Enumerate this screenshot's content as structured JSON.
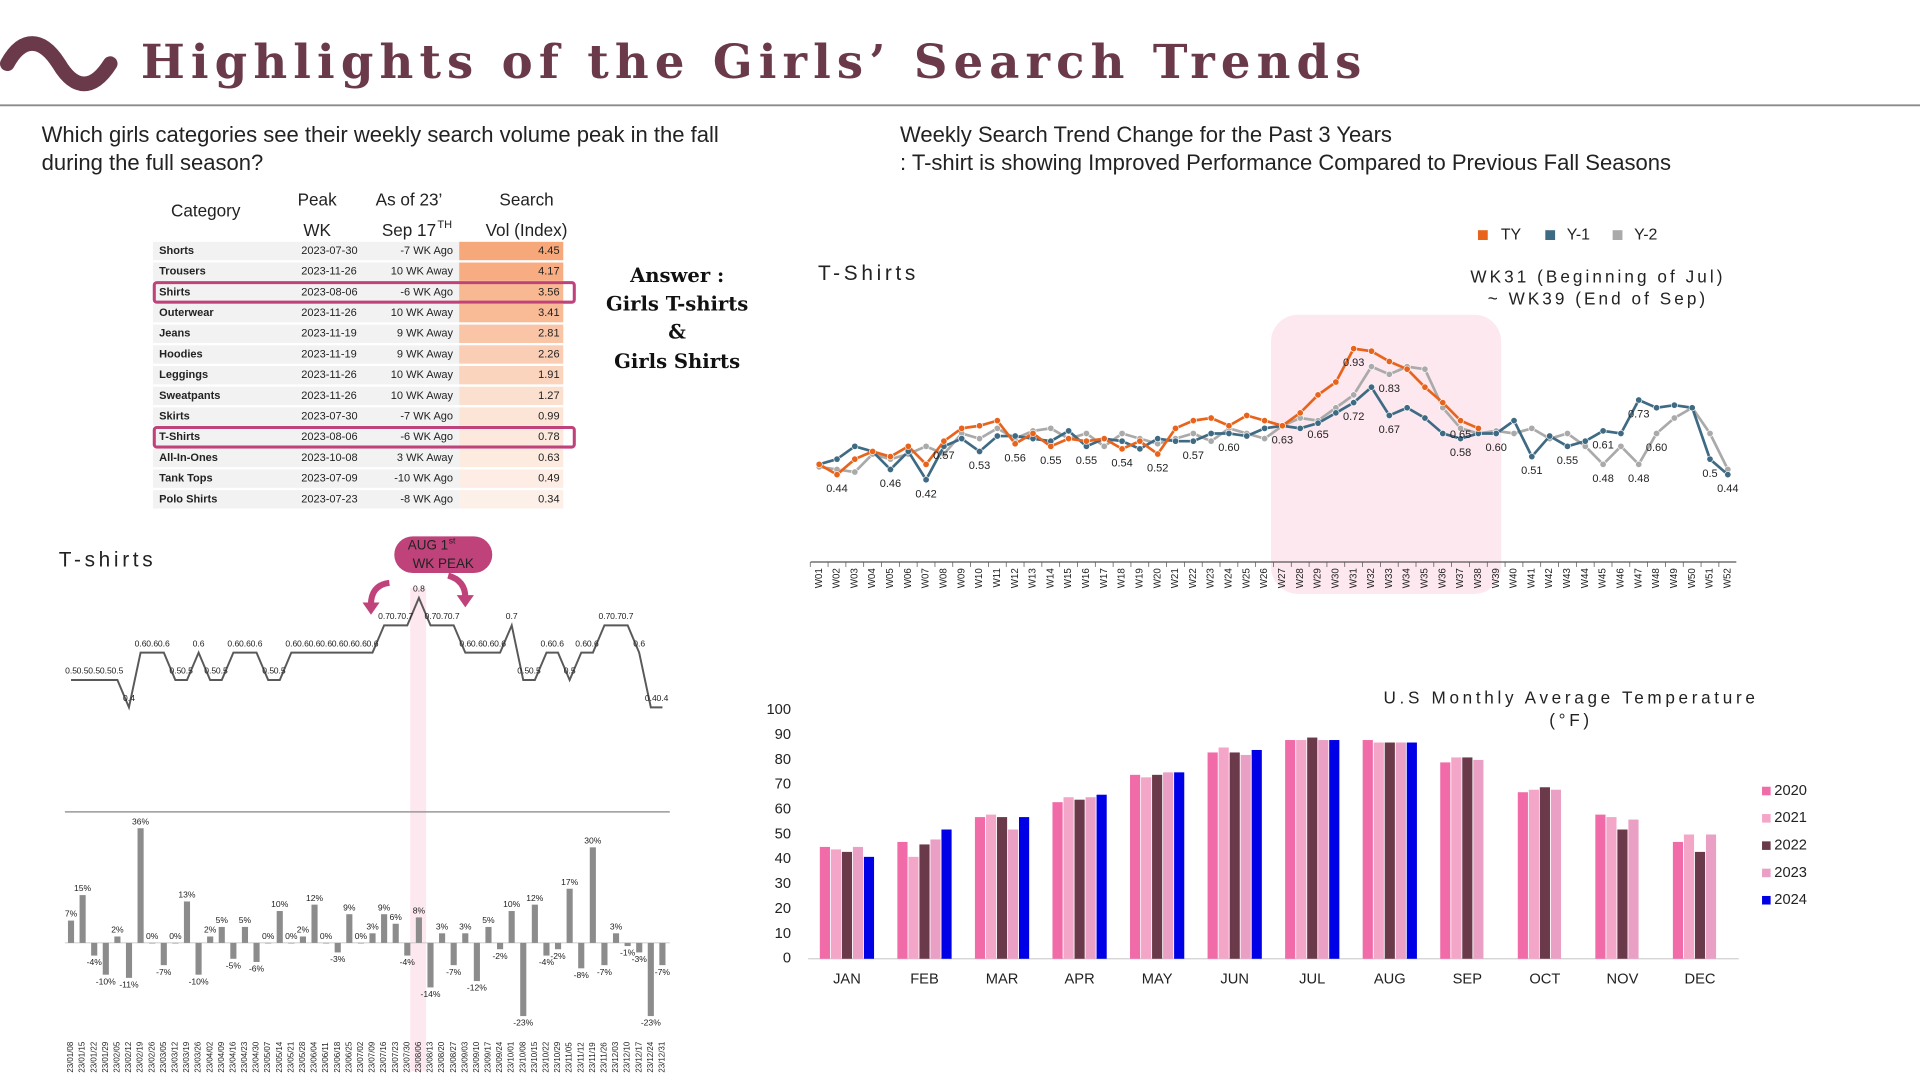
{
  "header": {
    "title": "Highlights of the Girls’ Search Trends"
  },
  "left_question": [
    "Which girls categories see their weekly search volume peak in the fall",
    "during the full season?"
  ],
  "table": {
    "headers": [
      [
        "Category"
      ],
      [
        "Peak",
        "WK"
      ],
      [
        "As of 23’",
        "Sep 17"
      ],
      [
        "Search",
        "Vol (Index)"
      ]
    ],
    "header_sup": "TH",
    "rows": [
      {
        "category": "Shorts",
        "peak_wk": "2023-07-30",
        "as_of": "-7 WK Ago",
        "vol": 4.45
      },
      {
        "category": "Trousers",
        "peak_wk": "2023-11-26",
        "as_of": "10 WK Away",
        "vol": 4.17
      },
      {
        "category": "Shirts",
        "peak_wk": "2023-08-06",
        "as_of": "-6 WK Ago",
        "vol": 3.56,
        "highlight": true
      },
      {
        "category": "Outerwear",
        "peak_wk": "2023-11-26",
        "as_of": "10 WK Away",
        "vol": 3.41
      },
      {
        "category": "Jeans",
        "peak_wk": "2023-11-19",
        "as_of": "9 WK Away",
        "vol": 2.81
      },
      {
        "category": "Hoodies",
        "peak_wk": "2023-11-19",
        "as_of": "9 WK Away",
        "vol": 2.26
      },
      {
        "category": "Leggings",
        "peak_wk": "2023-11-26",
        "as_of": "10 WK Away",
        "vol": 1.91
      },
      {
        "category": "Sweatpants",
        "peak_wk": "2023-11-26",
        "as_of": "10 WK Away",
        "vol": 1.27
      },
      {
        "category": "Skirts",
        "peak_wk": "2023-07-30",
        "as_of": "-7 WK Ago",
        "vol": 0.99
      },
      {
        "category": "T-Shirts",
        "peak_wk": "2023-08-06",
        "as_of": "-6 WK Ago",
        "vol": 0.78,
        "highlight": true
      },
      {
        "category": "All-In-Ones",
        "peak_wk": "2023-10-08",
        "as_of": "3 WK Away",
        "vol": 0.63
      },
      {
        "category": "Tank Tops",
        "peak_wk": "2023-07-09",
        "as_of": "-10 WK Ago",
        "vol": 0.49
      },
      {
        "category": "Polo Shirts",
        "peak_wk": "2023-07-23",
        "as_of": "-8 WK Ago",
        "vol": 0.34
      }
    ]
  },
  "answer": [
    "Answer :",
    "Girls T-shirts",
    "&",
    "Girls Shirts"
  ],
  "right_heading": [
    "Weekly Search Trend Change for the Past 3 Years",
    ": T-shirt is showing Improved Performance Compared to Previous Fall Seasons"
  ],
  "chart_data": [
    {
      "type": "line",
      "title": "T-Shirts",
      "annotation": [
        "WK31 (Beginning of Jul)",
        "~ WK39  (End of Sep)"
      ],
      "categories": [
        "W01",
        "W02",
        "W03",
        "W04",
        "W05",
        "W06",
        "W07",
        "W08",
        "W09",
        "W10",
        "W11",
        "W12",
        "W13",
        "W14",
        "W15",
        "W16",
        "W17",
        "W18",
        "W19",
        "W20",
        "W21",
        "W22",
        "W23",
        "W24",
        "W25",
        "W26",
        "W27",
        "W28",
        "W29",
        "W30",
        "W31",
        "W32",
        "W33",
        "W34",
        "W35",
        "W36",
        "W37",
        "W38",
        "W39",
        "W40",
        "W41",
        "W42",
        "W43",
        "W44",
        "W45",
        "W46",
        "W47",
        "W48",
        "W49",
        "W50",
        "W51",
        "W52"
      ],
      "ylim": [
        0.3,
        1.0
      ],
      "series": [
        {
          "name": "TY",
          "color": "#e8641c",
          "values": [
            0.48,
            0.44,
            0.5,
            0.53,
            0.51,
            0.55,
            0.48,
            0.57,
            0.62,
            0.63,
            0.65,
            0.56,
            0.6,
            0.55,
            0.58,
            0.57,
            0.58,
            0.54,
            0.57,
            0.52,
            0.62,
            0.65,
            0.66,
            0.63,
            0.67,
            0.65,
            0.63,
            0.68,
            0.75,
            0.8,
            0.93,
            0.92,
            0.88,
            0.85,
            0.78,
            0.72,
            0.65,
            0.62,
            null,
            null,
            null,
            null,
            null,
            null,
            null,
            null,
            null,
            null,
            null,
            null,
            null,
            null
          ],
          "value_labels": [
            null,
            "0.44",
            null,
            null,
            null,
            null,
            null,
            "0.57",
            null,
            null,
            null,
            "0.56",
            null,
            "0.55",
            null,
            null,
            null,
            "0.54",
            null,
            "0.52",
            null,
            null,
            null,
            null,
            null,
            null,
            null,
            null,
            null,
            null,
            "0.93",
            null,
            null,
            null,
            null,
            null,
            "0.65",
            null,
            null,
            null,
            null,
            null,
            null,
            null,
            null,
            null,
            null,
            null,
            null,
            null,
            null,
            null
          ]
        },
        {
          "name": "Y-1",
          "color": "#3e6a83",
          "values": [
            0.48,
            0.5,
            0.55,
            0.53,
            0.46,
            0.53,
            0.42,
            0.55,
            0.58,
            0.53,
            0.59,
            0.59,
            0.58,
            0.57,
            0.61,
            0.55,
            0.58,
            0.57,
            0.54,
            0.58,
            0.57,
            0.57,
            0.6,
            0.6,
            0.59,
            0.62,
            0.63,
            0.62,
            0.64,
            0.68,
            0.72,
            0.78,
            0.67,
            0.7,
            0.66,
            0.6,
            0.58,
            0.6,
            0.6,
            0.65,
            0.51,
            0.59,
            0.55,
            0.57,
            0.61,
            0.6,
            0.73,
            0.7,
            0.71,
            0.7,
            0.5,
            0.44
          ],
          "value_labels": [
            null,
            null,
            null,
            null,
            "0.46",
            null,
            "0.42",
            null,
            null,
            "0.53",
            null,
            null,
            null,
            null,
            null,
            "0.55",
            null,
            null,
            null,
            null,
            null,
            "0.57",
            null,
            "0.60",
            null,
            null,
            null,
            null,
            null,
            null,
            "0.72",
            null,
            "0.67",
            null,
            null,
            null,
            "0.58",
            null,
            "0.60",
            null,
            "0.51",
            null,
            "0.55",
            null,
            "0.61",
            null,
            "0.73",
            null,
            null,
            null,
            "0.5",
            "0.44"
          ]
        },
        {
          "name": "Y-2",
          "color": "#aaaaaa",
          "values": [
            0.47,
            0.46,
            0.45,
            0.52,
            0.5,
            0.52,
            0.55,
            0.52,
            0.6,
            0.58,
            0.62,
            0.58,
            0.61,
            0.62,
            0.58,
            0.6,
            0.55,
            0.6,
            0.58,
            0.56,
            0.58,
            0.6,
            0.57,
            0.62,
            0.6,
            0.58,
            0.63,
            0.66,
            0.65,
            0.7,
            0.75,
            0.86,
            0.83,
            0.86,
            0.85,
            0.7,
            0.62,
            0.6,
            0.61,
            0.6,
            0.62,
            0.58,
            0.6,
            0.55,
            0.48,
            0.55,
            0.48,
            0.6,
            0.66,
            0.7,
            0.6,
            0.46
          ],
          "value_labels": [
            null,
            null,
            null,
            null,
            null,
            null,
            null,
            null,
            null,
            null,
            null,
            null,
            null,
            null,
            null,
            null,
            null,
            null,
            null,
            null,
            null,
            null,
            null,
            null,
            null,
            null,
            "0.63",
            null,
            "0.65",
            null,
            null,
            null,
            "0.83",
            null,
            null,
            null,
            null,
            null,
            null,
            null,
            null,
            null,
            null,
            null,
            "0.48",
            null,
            "0.48",
            "0.60",
            null,
            null,
            null,
            null
          ]
        }
      ],
      "legend": "top"
    },
    {
      "type": "combo",
      "title": "T-shirts",
      "annotation": {
        "lines": [
          "AUG 1",
          "WK PEAK"
        ],
        "sup": "st"
      },
      "categories": [
        "23/01/08",
        "23/01/15",
        "23/01/22",
        "23/01/29",
        "23/02/05",
        "23/02/12",
        "23/02/19",
        "23/02/26",
        "23/03/05",
        "23/03/12",
        "23/03/19",
        "23/03/26",
        "23/04/02",
        "23/04/09",
        "23/04/16",
        "23/04/23",
        "23/04/30",
        "23/05/07",
        "23/05/14",
        "23/05/21",
        "23/05/28",
        "23/06/04",
        "23/06/11",
        "23/06/18",
        "23/06/25",
        "23/07/02",
        "23/07/09",
        "23/07/16",
        "23/07/23",
        "23/07/30",
        "23/08/06",
        "23/08/13",
        "23/08/20",
        "23/08/27",
        "23/09/03",
        "23/09/10",
        "23/09/17",
        "23/09/24",
        "23/10/01",
        "23/10/08",
        "23/10/15",
        "23/10/22",
        "23/10/29",
        "23/11/05",
        "23/11/12",
        "23/11/19",
        "23/11/26",
        "23/12/03",
        "23/12/10",
        "23/12/17",
        "23/12/24",
        "23/12/31"
      ],
      "line": {
        "color": "#595959",
        "ylim": [
          0.3,
          0.9
        ],
        "values": [
          0.5,
          0.5,
          0.5,
          0.5,
          0.5,
          0.4,
          0.6,
          0.6,
          0.6,
          0.5,
          0.5,
          0.6,
          0.5,
          0.5,
          0.6,
          0.6,
          0.6,
          0.5,
          0.5,
          0.6,
          0.6,
          0.6,
          0.6,
          0.6,
          0.6,
          0.6,
          0.6,
          0.7,
          0.7,
          0.7,
          0.8,
          0.7,
          0.7,
          0.7,
          0.6,
          0.6,
          0.6,
          0.6,
          0.7,
          0.5,
          0.5,
          0.6,
          0.6,
          0.5,
          0.6,
          0.6,
          0.7,
          0.7,
          0.7,
          0.6,
          0.4,
          0.4
        ]
      },
      "bars": {
        "color": "#8c8c8c",
        "ylim": [
          -25,
          40
        ],
        "values": [
          7,
          15,
          -4,
          -10,
          2,
          -11,
          36,
          0,
          -7,
          0,
          13,
          -10,
          2,
          5,
          -5,
          5,
          -6,
          0,
          10,
          0,
          2,
          12,
          0,
          -3,
          9,
          0,
          3,
          9,
          6,
          -4,
          8,
          -14,
          3,
          -7,
          3,
          -12,
          5,
          -2,
          10,
          -23,
          12,
          -4,
          -2,
          17,
          -8,
          30,
          -7,
          3,
          -1,
          -3,
          -23,
          -7
        ],
        "value_labels": [
          "7%",
          "15%",
          "-4%",
          "-10%",
          "2%",
          "-11%",
          "36%",
          "0%",
          "-7%",
          "0%",
          "13%",
          "-10%",
          "2%",
          "5%",
          "-5%",
          "5%",
          "-6%",
          "0%",
          "10%",
          "0%",
          "2%",
          "12%",
          "0%",
          "-3%",
          "9%",
          "0%",
          "3%",
          "9%",
          "6%",
          "-4%",
          "8%",
          "-14%",
          "3%",
          "-7%",
          "3%",
          "-12%",
          "5%",
          "-2%",
          "10%",
          "-23%",
          "12%",
          "-4%",
          "-2%",
          "17%",
          "-8%",
          "30%",
          "-7%",
          "3%",
          "-1%",
          "-3%",
          "-23%",
          "-7%"
        ]
      }
    },
    {
      "type": "bar",
      "title": [
        "U.S Monthly Average Temperature",
        "(°F)"
      ],
      "categories": [
        "JAN",
        "FEB",
        "MAR",
        "APR",
        "MAY",
        "JUN",
        "JUL",
        "AUG",
        "SEP",
        "OCT",
        "NOV",
        "DEC"
      ],
      "ylim": [
        0,
        100
      ],
      "yticks": [
        0,
        10,
        20,
        30,
        40,
        50,
        60,
        70,
        80,
        90,
        100
      ],
      "legend": "right",
      "series": [
        {
          "name": "2020",
          "color": "#f06ba8",
          "values": [
            45,
            47,
            57,
            63,
            74,
            83,
            88,
            88,
            79,
            67,
            58,
            47
          ]
        },
        {
          "name": "2021",
          "color": "#f3a6c8",
          "values": [
            44,
            41,
            58,
            65,
            73,
            85,
            88,
            87,
            81,
            68,
            57,
            50
          ]
        },
        {
          "name": "2022",
          "color": "#6b3a4a",
          "values": [
            43,
            46,
            57,
            64,
            74,
            83,
            89,
            87,
            81,
            69,
            52,
            43
          ]
        },
        {
          "name": "2023",
          "color": "#e9a0c4",
          "values": [
            45,
            48,
            52,
            65,
            75,
            82,
            88,
            87,
            80,
            68,
            56,
            50
          ]
        },
        {
          "name": "2024",
          "color": "#0000e6",
          "values": [
            41,
            52,
            57,
            66,
            75,
            84,
            88,
            87,
            null,
            null,
            null,
            null
          ]
        }
      ]
    }
  ]
}
